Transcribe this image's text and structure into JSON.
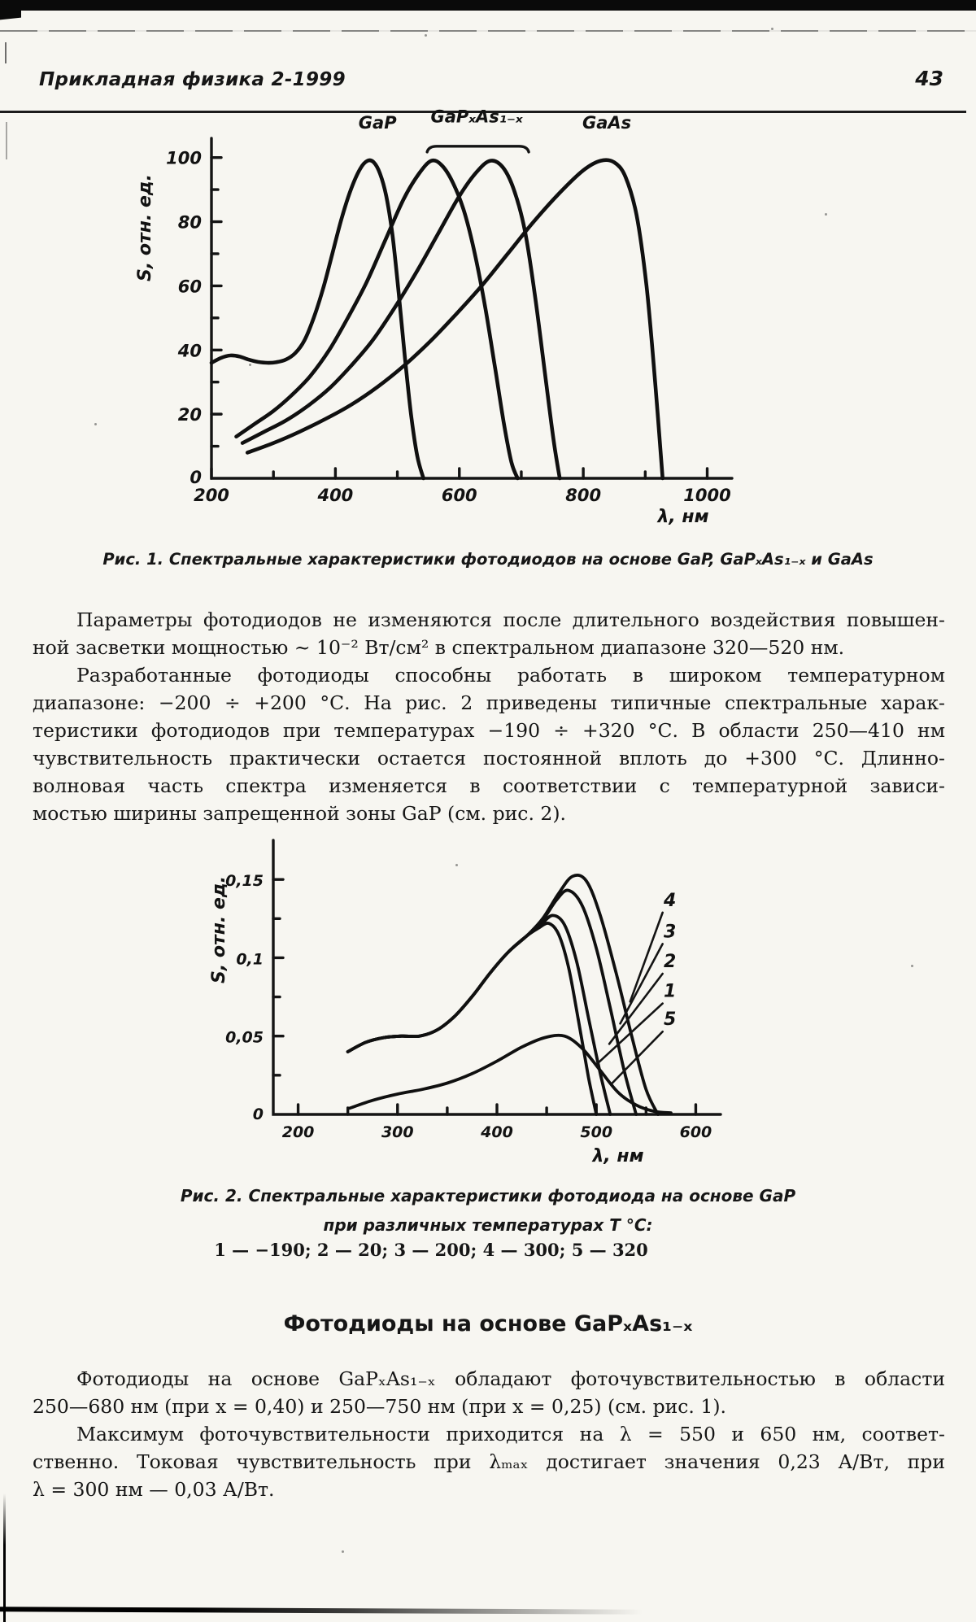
{
  "header": {
    "journal_title": "Прикладная физика 2-1999",
    "page_number": "43"
  },
  "figure1": {
    "caption": "Рис. 1. Спектральные характеристики фотодиодов на основе GaP, GaPₓAs₁₋ₓ и GaAs"
  },
  "figure2": {
    "caption_line1": "Рис. 2. Спектральные характеристики фотодиода на основе GaP",
    "caption_line2": "при различных температурах Т °С:",
    "caption_line3": "1 — −190; 2 — 20; 3 — 200; 4 — 300;  5 — 320"
  },
  "section": {
    "heading": "Фотодиоды на основе GaPₓAs₁₋ₓ"
  },
  "content": {
    "para1": [
      "Параметры фотодиодов не изменяются после длительного воздействия повышен-",
      "ной засветки мощностью ~ 10⁻² Вт/см² в спектральном диапазоне 320—520 нм."
    ],
    "para2": [
      "Разработанные фотодиоды способны работать в широком температурном",
      "диапазоне: −200 ÷ +200 °С. На рис. 2 приведены типичные спектральные харак-",
      "теристики фотодиодов при температурах −190 ÷ +320 °С. В области 250—410 нм",
      "чувствительность практически остается постоянной вплоть до +300 °С. Длинно-",
      "волновая часть спектра изменяется в соответствии с температурной зависи-",
      "мостью ширины запрещенной зоны GaP (см. рис. 2)."
    ],
    "para3": [
      "Фотодиоды на основе GaPₓAs₁₋ₓ обладают фоточувствительностью в области",
      "250—680 нм (при x = 0,40) и 250—750 нм (при x = 0,25) (см. рис. 1)."
    ],
    "para4": [
      "Максимум фоточувствительности приходится на λ = 550 и 650 нм, соответ-",
      "ственно. Токовая чувствительность при λₘₐₓ достигает значения 0,23 А/Вт, при",
      "λ = 300 нм — 0,03 А/Вт."
    ]
  },
  "chart_data": [
    {
      "type": "line",
      "title": "Спектральные характеристики фотодиодов на основе GaP, GaPxAs1-x и GaAs",
      "xlabel": "λ, нм",
      "ylabel": "S, отн. ед.",
      "xlim": [
        200,
        1040
      ],
      "ylim": [
        0,
        106
      ],
      "grid": false,
      "xticks_major": [
        200,
        400,
        600,
        800,
        1000
      ],
      "xtick_labels": [
        "200",
        "400",
        "600",
        "800",
        "1000"
      ],
      "xticks_minor": [
        300,
        500,
        700,
        900
      ],
      "yticks_major": [
        20,
        40,
        60,
        80,
        100
      ],
      "ytick_labels": [
        "20",
        "40",
        "60",
        "80",
        "100"
      ],
      "yticks_minor": [
        10,
        30,
        50,
        70,
        90
      ],
      "origin_label": "0",
      "series": [
        {
          "name": "GaP",
          "x": [
            200,
            215,
            230,
            245,
            260,
            275,
            290,
            305,
            320,
            335,
            350,
            365,
            380,
            395,
            410,
            425,
            440,
            452,
            462,
            472,
            482,
            492,
            502,
            512,
            522,
            532,
            542
          ],
          "y": [
            36,
            37.5,
            38.3,
            38,
            37,
            36.3,
            36,
            36.2,
            37,
            39,
            43,
            50,
            59,
            70,
            81,
            90,
            96.5,
            99,
            98.5,
            95,
            88,
            76,
            58,
            38,
            20,
            7,
            0
          ]
        },
        {
          "name": "GaPxAs1-x (x = 0,40)",
          "x": [
            240,
            270,
            300,
            330,
            360,
            390,
            420,
            450,
            480,
            510,
            535,
            555,
            572,
            590,
            608,
            625,
            642,
            658,
            672,
            684,
            694
          ],
          "y": [
            13,
            17,
            21,
            26,
            32,
            40,
            50,
            61,
            74,
            87,
            95,
            99,
            97.5,
            92,
            83,
            70,
            53,
            34,
            17,
            5,
            0
          ]
        },
        {
          "name": "GaPxAs1-x (x = 0,25)",
          "x": [
            250,
            285,
            320,
            355,
            390,
            425,
            460,
            495,
            530,
            565,
            600,
            628,
            650,
            670,
            688,
            706,
            722,
            738,
            752,
            762
          ],
          "y": [
            11,
            14.5,
            18,
            22.5,
            28,
            35,
            43,
            53,
            64,
            76,
            88,
            95.5,
            99,
            97,
            90,
            77,
            57,
            33,
            12,
            0
          ]
        },
        {
          "name": "GaAs",
          "x": [
            258,
            300,
            342,
            384,
            426,
            468,
            510,
            552,
            594,
            636,
            678,
            720,
            762,
            800,
            828,
            850,
            868,
            886,
            902,
            916,
            928
          ],
          "y": [
            8,
            11,
            14.5,
            18.5,
            23,
            28.5,
            35,
            42.5,
            51,
            60,
            70,
            80,
            89,
            96,
            99,
            98.5,
            94,
            82,
            60,
            30,
            0
          ]
        }
      ],
      "curve_labels": [
        {
          "text": "GaP",
          "x": 468,
          "y": 109
        },
        {
          "text": "GaPₓAs₁₋ₓ",
          "x": 628,
          "y": 111,
          "bracket": [
            548,
            712
          ],
          "bracket_y": 103.5
        },
        {
          "text": "GaAs",
          "x": 838,
          "y": 109
        }
      ]
    },
    {
      "type": "line",
      "title": "Спектральные характеристики фотодиода на основе GaP при различных температурах T °C",
      "xlabel": "λ, нм",
      "ylabel": "S, отн. ед.",
      "xlim": [
        175,
        625
      ],
      "ylim": [
        0,
        0.175
      ],
      "grid": false,
      "xticks_major": [
        200,
        300,
        400,
        500,
        600
      ],
      "xtick_labels": [
        "200",
        "300",
        "400",
        "500",
        "600"
      ],
      "xticks_minor": [
        250,
        350,
        450,
        550
      ],
      "yticks_major": [
        0.05,
        0.1,
        0.15
      ],
      "ytick_labels": [
        "0,05",
        "0,1",
        "0,15"
      ],
      "yticks_minor": [
        0.025,
        0.075,
        0.125
      ],
      "origin_label": "0",
      "series": [
        {
          "name": "1 (−190 °C)",
          "x": [
            250,
            268,
            286,
            304,
            322,
            340,
            358,
            376,
            394,
            412,
            430,
            442,
            452,
            462,
            472,
            482,
            492,
            500
          ],
          "y": [
            0.04,
            0.046,
            0.049,
            0.05,
            0.05,
            0.054,
            0.063,
            0.076,
            0.091,
            0.104,
            0.114,
            0.119,
            0.122,
            0.115,
            0.094,
            0.06,
            0.024,
            0.0
          ]
        },
        {
          "name": "2 (20 °C)",
          "x": [
            250,
            268,
            286,
            304,
            322,
            340,
            358,
            376,
            394,
            412,
            430,
            444,
            456,
            468,
            480,
            492,
            504,
            514
          ],
          "y": [
            0.04,
            0.046,
            0.049,
            0.05,
            0.05,
            0.054,
            0.063,
            0.076,
            0.091,
            0.104,
            0.114,
            0.121,
            0.127,
            0.121,
            0.098,
            0.062,
            0.026,
            0.0
          ]
        },
        {
          "name": "3 (200 °C)",
          "x": [
            250,
            268,
            286,
            304,
            322,
            340,
            358,
            376,
            394,
            412,
            430,
            446,
            460,
            472,
            486,
            500,
            514,
            528,
            540
          ],
          "y": [
            0.04,
            0.046,
            0.049,
            0.05,
            0.05,
            0.054,
            0.063,
            0.076,
            0.091,
            0.104,
            0.114,
            0.124,
            0.137,
            0.143,
            0.133,
            0.106,
            0.068,
            0.028,
            0.0
          ]
        },
        {
          "name": "4 (300 °C)",
          "x": [
            250,
            268,
            286,
            304,
            322,
            340,
            358,
            376,
            394,
            412,
            430,
            446,
            462,
            476,
            490,
            504,
            520,
            536,
            550,
            562
          ],
          "y": [
            0.04,
            0.046,
            0.049,
            0.05,
            0.05,
            0.054,
            0.063,
            0.076,
            0.091,
            0.104,
            0.114,
            0.125,
            0.141,
            0.152,
            0.149,
            0.127,
            0.09,
            0.049,
            0.016,
            0.0
          ]
        },
        {
          "name": "5 (320 °C)",
          "x": [
            252,
            275,
            300,
            325,
            350,
            375,
            400,
            425,
            448,
            468,
            486,
            504,
            522,
            540,
            558,
            575
          ],
          "y": [
            0.004,
            0.009,
            0.013,
            0.016,
            0.02,
            0.026,
            0.034,
            0.043,
            0.049,
            0.05,
            0.042,
            0.028,
            0.014,
            0.006,
            0.002,
            0.001
          ]
        }
      ],
      "curve_labels": [
        {
          "text": "4",
          "x": 574,
          "y": 0.133,
          "leader": [
            534,
            0.072
          ]
        },
        {
          "text": "3",
          "x": 574,
          "y": 0.113,
          "leader": [
            524,
            0.058
          ]
        },
        {
          "text": "2",
          "x": 574,
          "y": 0.094,
          "leader": [
            513,
            0.045
          ]
        },
        {
          "text": "1",
          "x": 574,
          "y": 0.075,
          "leader": [
            502,
            0.033
          ]
        },
        {
          "text": "5",
          "x": 574,
          "y": 0.057,
          "leader": [
            516,
            0.02
          ]
        }
      ]
    }
  ]
}
